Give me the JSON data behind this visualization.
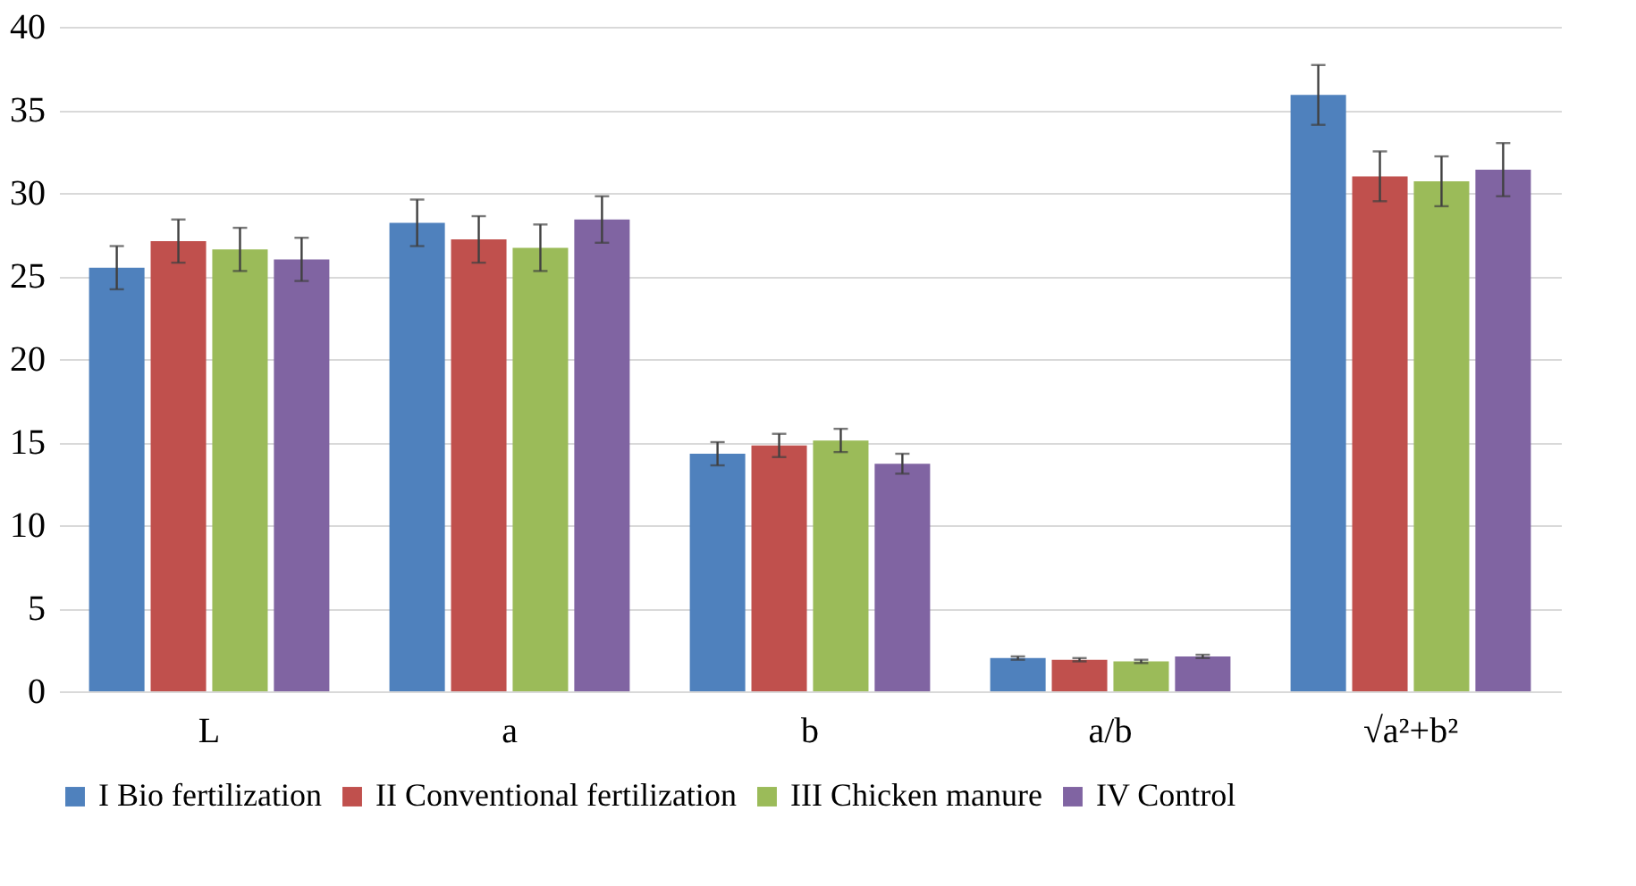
{
  "chart_data": {
    "type": "bar",
    "categories": [
      "L",
      "a",
      "b",
      "a/b",
      "√a²+b²"
    ],
    "series": [
      {
        "name": "I Bio fertilization",
        "color": "#4f81bd",
        "values": [
          25.5,
          28.2,
          14.3,
          2.0,
          35.9
        ],
        "errors": [
          1.3,
          1.4,
          0.7,
          0.1,
          1.8
        ]
      },
      {
        "name": "II Conventional fertilization",
        "color": "#c0504d",
        "values": [
          27.1,
          27.2,
          14.8,
          1.9,
          31.0
        ],
        "errors": [
          1.3,
          1.4,
          0.7,
          0.1,
          1.5
        ]
      },
      {
        "name": "III Chicken manure",
        "color": "#9bbb59",
        "values": [
          26.6,
          26.7,
          15.1,
          1.8,
          30.7
        ],
        "errors": [
          1.3,
          1.4,
          0.7,
          0.1,
          1.5
        ]
      },
      {
        "name": "IV Control",
        "color": "#8064a2",
        "values": [
          26.0,
          28.4,
          13.7,
          2.1,
          31.4
        ],
        "errors": [
          1.3,
          1.4,
          0.6,
          0.1,
          1.6
        ]
      }
    ],
    "ylim": [
      0,
      40
    ],
    "yticks": [
      0,
      5,
      10,
      15,
      20,
      25,
      30,
      35,
      40
    ],
    "grid": "y",
    "legend": "bottom"
  }
}
